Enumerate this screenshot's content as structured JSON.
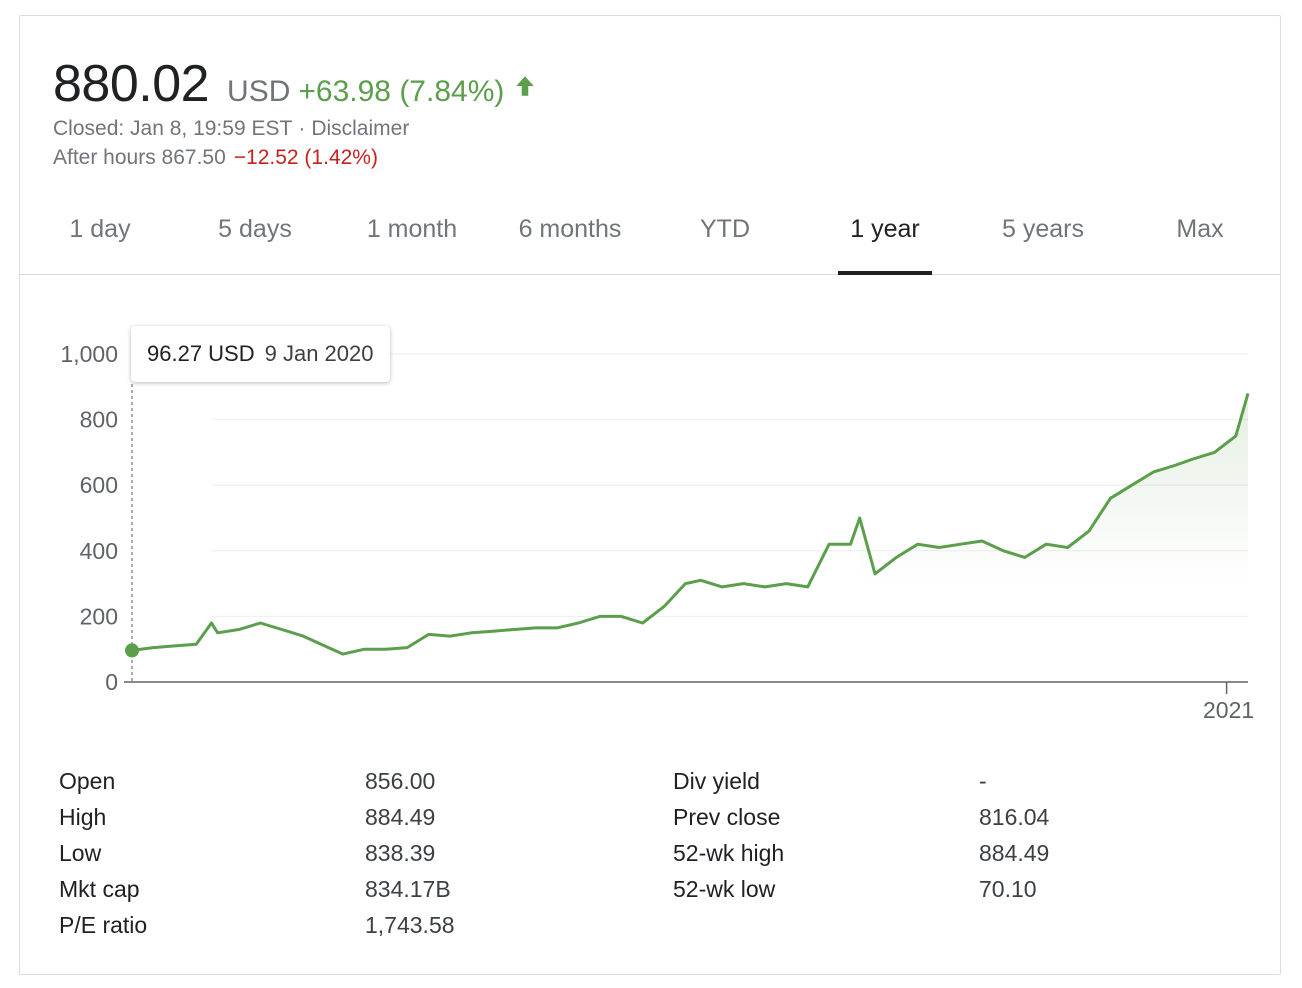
{
  "header": {
    "price": "880.02",
    "currency": "USD",
    "change": "+63.98 (7.84%)",
    "change_direction": "up",
    "status": "Closed: Jan 8, 19:59 EST",
    "disclaimer": "Disclaimer",
    "after_hours_label": "After hours 867.50",
    "after_hours_change": "−12.52 (1.42%)"
  },
  "tabs": [
    {
      "label": "1 day",
      "active": false
    },
    {
      "label": "5 days",
      "active": false
    },
    {
      "label": "1 month",
      "active": false
    },
    {
      "label": "6 months",
      "active": false
    },
    {
      "label": "YTD",
      "active": false
    },
    {
      "label": "1 year",
      "active": true
    },
    {
      "label": "5 years",
      "active": false
    },
    {
      "label": "Max",
      "active": false
    }
  ],
  "tooltip": {
    "value": "96.27 USD",
    "date": "9 Jan 2020"
  },
  "colors": {
    "positive": "#5b9e4c",
    "negative": "#c5221f",
    "line": "#5b9e4c",
    "fill": "#e6f4ea"
  },
  "chart_data": {
    "type": "area",
    "title": "",
    "xlabel": "",
    "ylabel": "",
    "ylim": [
      0,
      1000
    ],
    "yticks": [
      "0",
      "200",
      "400",
      "600",
      "800",
      "1,000"
    ],
    "xticks": [
      {
        "label": "2021",
        "x": "2021-01-01"
      }
    ],
    "x_range": [
      "2020-01-09",
      "2021-01-08"
    ],
    "grid": true,
    "shaded_area_starts": "2020-09-01",
    "highlight_point": {
      "x": "2020-01-09",
      "y": 96.27
    },
    "series": [
      {
        "x": [
          "2020-01-09",
          "2020-01-16",
          "2020-01-23",
          "2020-01-30",
          "2020-02-04",
          "2020-02-06",
          "2020-02-13",
          "2020-02-20",
          "2020-02-27",
          "2020-03-05",
          "2020-03-12",
          "2020-03-18",
          "2020-03-25",
          "2020-04-01",
          "2020-04-08",
          "2020-04-15",
          "2020-04-22",
          "2020-04-29",
          "2020-05-06",
          "2020-05-13",
          "2020-05-20",
          "2020-05-27",
          "2020-06-03",
          "2020-06-10",
          "2020-06-17",
          "2020-06-24",
          "2020-07-01",
          "2020-07-08",
          "2020-07-13",
          "2020-07-20",
          "2020-07-27",
          "2020-08-03",
          "2020-08-10",
          "2020-08-17",
          "2020-08-24",
          "2020-08-31",
          "2020-09-03",
          "2020-09-08",
          "2020-09-15",
          "2020-09-22",
          "2020-09-29",
          "2020-10-06",
          "2020-10-13",
          "2020-10-20",
          "2020-10-27",
          "2020-11-03",
          "2020-11-10",
          "2020-11-17",
          "2020-11-24",
          "2020-12-01",
          "2020-12-08",
          "2020-12-15",
          "2020-12-21",
          "2020-12-28",
          "2021-01-04",
          "2021-01-08"
        ],
        "y": [
          96.27,
          105,
          110,
          115,
          180,
          150,
          160,
          180,
          160,
          140,
          110,
          85,
          100,
          100,
          105,
          145,
          140,
          150,
          155,
          160,
          165,
          165,
          180,
          200,
          200,
          180,
          230,
          300,
          310,
          290,
          300,
          290,
          300,
          290,
          420,
          420,
          500,
          330,
          380,
          420,
          410,
          420,
          430,
          400,
          380,
          420,
          410,
          460,
          560,
          600,
          640,
          660,
          680,
          700,
          750,
          880.02
        ]
      }
    ]
  },
  "stats": {
    "left": [
      {
        "label": "Open",
        "value": "856.00"
      },
      {
        "label": "High",
        "value": "884.49"
      },
      {
        "label": "Low",
        "value": "838.39"
      },
      {
        "label": "Mkt cap",
        "value": "834.17B"
      },
      {
        "label": "P/E ratio",
        "value": "1,743.58"
      }
    ],
    "right": [
      {
        "label": "Div yield",
        "value": "-"
      },
      {
        "label": "Prev close",
        "value": "816.04"
      },
      {
        "label": "52-wk high",
        "value": "884.49"
      },
      {
        "label": "52-wk low",
        "value": "70.10"
      }
    ]
  }
}
